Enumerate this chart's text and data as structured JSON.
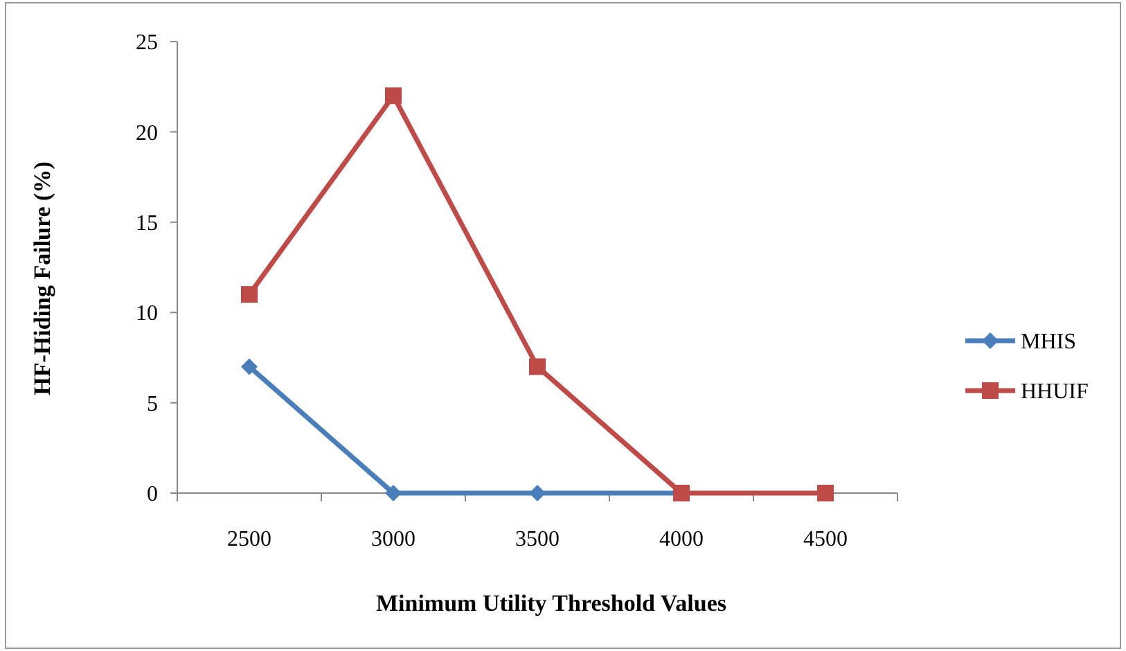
{
  "chart_data": {
    "type": "line",
    "xlabel": "Minimum Utility Threshold Values",
    "ylabel": "HF-Hiding Failure (%)",
    "categories": [
      "2500",
      "3000",
      "3500",
      "4000",
      "4500"
    ],
    "series": [
      {
        "name": "MHIS",
        "color": "#4a7ebb",
        "marker": "diamond",
        "values": [
          7,
          0,
          0,
          0,
          null
        ]
      },
      {
        "name": "HHUIF",
        "color": "#be4b48",
        "marker": "square",
        "values": [
          11,
          22,
          7,
          0,
          0
        ]
      }
    ],
    "ylim": [
      0,
      25
    ],
    "yticks": [
      0,
      5,
      10,
      15,
      20,
      25
    ],
    "grid": false,
    "legend": "right"
  }
}
